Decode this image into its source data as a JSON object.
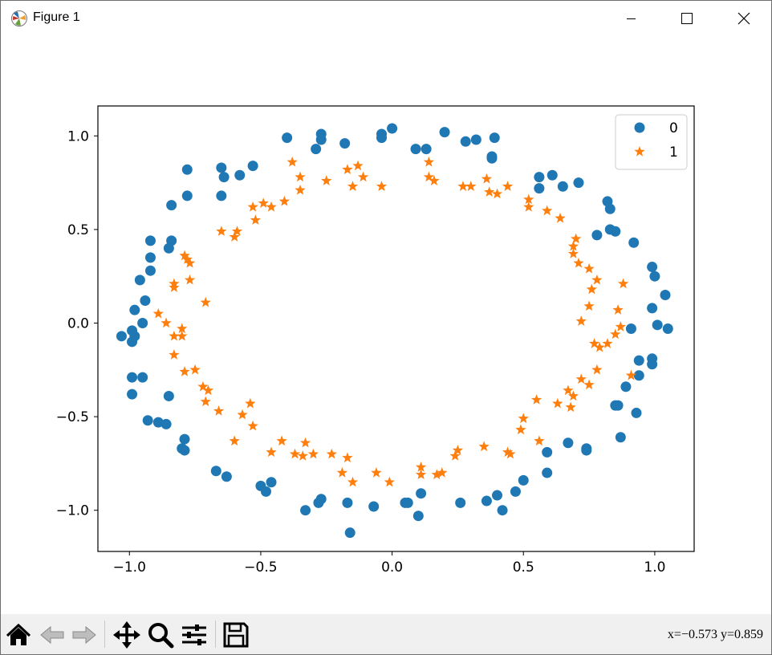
{
  "window": {
    "title": "Figure 1"
  },
  "toolbar": {
    "coords": "x=−0.573 y=0.859",
    "buttons": [
      "home-icon",
      "back-icon",
      "forward-icon",
      "pan-icon",
      "zoom-icon",
      "configure-subplots-icon",
      "save-icon"
    ]
  },
  "colors": {
    "series0": "#1f77b4",
    "series1": "#ff7f0e"
  },
  "chart_data": {
    "type": "scatter",
    "xlim": [
      -1.12,
      1.15
    ],
    "ylim": [
      -1.22,
      1.16
    ],
    "xticks": [
      -1.0,
      -0.5,
      0.0,
      0.5,
      1.0
    ],
    "xtick_labels": [
      "−1.0",
      "−0.5",
      "0.0",
      "0.5",
      "1.0"
    ],
    "yticks": [
      1.0,
      0.5,
      0.0,
      -0.5,
      -1.0
    ],
    "ytick_labels": [
      "1.0",
      "0.5",
      "0.0",
      "−0.5",
      "−1.0"
    ],
    "grid": false,
    "legend": "upper right",
    "series": [
      {
        "name": "0",
        "marker": "circle",
        "color": "#1f77b4",
        "points": [
          [
            -1.03,
            -0.07
          ],
          [
            -0.99,
            -0.04
          ],
          [
            -0.98,
            -0.07
          ],
          [
            -0.99,
            -0.1
          ],
          [
            -0.99,
            -0.29
          ],
          [
            -0.95,
            -0.29
          ],
          [
            -0.99,
            -0.38
          ],
          [
            -0.93,
            -0.52
          ],
          [
            -0.89,
            -0.53
          ],
          [
            -0.86,
            -0.54
          ],
          [
            -0.85,
            -0.39
          ],
          [
            -0.79,
            -0.62
          ],
          [
            -0.8,
            -0.67
          ],
          [
            -0.79,
            -0.68
          ],
          [
            -0.67,
            -0.79
          ],
          [
            -0.63,
            -0.82
          ],
          [
            -0.5,
            -0.87
          ],
          [
            -0.48,
            -0.9
          ],
          [
            -0.46,
            -0.85
          ],
          [
            -0.33,
            -1.0
          ],
          [
            -0.28,
            -0.96
          ],
          [
            -0.27,
            -0.94
          ],
          [
            -0.17,
            -0.96
          ],
          [
            -0.16,
            -1.12
          ],
          [
            -0.07,
            -0.98
          ],
          [
            0.05,
            -0.96
          ],
          [
            0.06,
            -0.96
          ],
          [
            0.1,
            -1.03
          ],
          [
            0.11,
            -0.91
          ],
          [
            0.26,
            -0.96
          ],
          [
            0.36,
            -0.95
          ],
          [
            0.4,
            -0.92
          ],
          [
            0.42,
            -1.0
          ],
          [
            0.47,
            -0.9
          ],
          [
            0.5,
            -0.84
          ],
          [
            0.59,
            -0.8
          ],
          [
            0.59,
            -0.69
          ],
          [
            0.67,
            -0.64
          ],
          [
            0.74,
            -0.67
          ],
          [
            0.74,
            -0.68
          ],
          [
            0.87,
            -0.61
          ],
          [
            0.85,
            -0.44
          ],
          [
            0.86,
            -0.44
          ],
          [
            0.89,
            -0.34
          ],
          [
            0.93,
            -0.48
          ],
          [
            0.94,
            -0.28
          ],
          [
            0.94,
            -0.2
          ],
          [
            0.99,
            -0.22
          ],
          [
            0.99,
            -0.19
          ],
          [
            0.91,
            -0.03
          ],
          [
            1.01,
            -0.01
          ],
          [
            1.05,
            -0.03
          ],
          [
            0.99,
            0.08
          ],
          [
            1.04,
            0.15
          ],
          [
            1.0,
            0.25
          ],
          [
            0.99,
            0.3
          ],
          [
            0.92,
            0.43
          ],
          [
            0.83,
            0.5
          ],
          [
            0.85,
            0.49
          ],
          [
            0.83,
            0.61
          ],
          [
            0.82,
            0.65
          ],
          [
            0.78,
            0.47
          ],
          [
            0.71,
            0.75
          ],
          [
            0.65,
            0.73
          ],
          [
            0.56,
            0.72
          ],
          [
            0.56,
            0.78
          ],
          [
            0.61,
            0.79
          ],
          [
            0.38,
            0.89
          ],
          [
            0.38,
            0.88
          ],
          [
            0.32,
            0.98
          ],
          [
            0.28,
            0.97
          ],
          [
            0.39,
            0.99
          ],
          [
            0.2,
            1.02
          ],
          [
            0.13,
            0.93
          ],
          [
            0.09,
            0.93
          ],
          [
            0.0,
            1.04
          ],
          [
            -0.04,
            1.01
          ],
          [
            -0.04,
            0.99
          ],
          [
            -0.18,
            0.96
          ],
          [
            -0.27,
            1.01
          ],
          [
            -0.27,
            0.98
          ],
          [
            -0.29,
            0.93
          ],
          [
            -0.4,
            0.99
          ],
          [
            -0.53,
            0.84
          ],
          [
            -0.58,
            0.79
          ],
          [
            -0.64,
            0.78
          ],
          [
            -0.65,
            0.83
          ],
          [
            -0.65,
            0.68
          ],
          [
            -0.78,
            0.82
          ],
          [
            -0.78,
            0.68
          ],
          [
            -0.84,
            0.63
          ],
          [
            -0.84,
            0.44
          ],
          [
            -0.85,
            0.4
          ],
          [
            -0.92,
            0.44
          ],
          [
            -0.92,
            0.35
          ],
          [
            -0.92,
            0.28
          ],
          [
            -0.96,
            0.23
          ],
          [
            -0.94,
            0.12
          ],
          [
            -0.98,
            0.07
          ],
          [
            -0.95,
            0.0
          ]
        ]
      },
      {
        "name": "1",
        "marker": "star",
        "color": "#ff7f0e",
        "points": [
          [
            -0.89,
            0.05
          ],
          [
            -0.86,
            0.0
          ],
          [
            -0.83,
            -0.07
          ],
          [
            -0.8,
            -0.07
          ],
          [
            -0.8,
            -0.03
          ],
          [
            -0.83,
            -0.17
          ],
          [
            -0.79,
            -0.26
          ],
          [
            -0.75,
            -0.25
          ],
          [
            -0.72,
            -0.34
          ],
          [
            -0.7,
            -0.36
          ],
          [
            -0.71,
            -0.42
          ],
          [
            -0.66,
            -0.47
          ],
          [
            -0.6,
            -0.63
          ],
          [
            -0.57,
            -0.49
          ],
          [
            -0.54,
            -0.43
          ],
          [
            -0.53,
            -0.55
          ],
          [
            -0.46,
            -0.69
          ],
          [
            -0.42,
            -0.63
          ],
          [
            -0.37,
            -0.7
          ],
          [
            -0.33,
            -0.64
          ],
          [
            -0.34,
            -0.71
          ],
          [
            -0.3,
            -0.7
          ],
          [
            -0.23,
            -0.7
          ],
          [
            -0.19,
            -0.8
          ],
          [
            -0.17,
            -0.72
          ],
          [
            -0.15,
            -0.85
          ],
          [
            -0.06,
            -0.8
          ],
          [
            -0.01,
            -0.85
          ],
          [
            0.11,
            -0.77
          ],
          [
            0.11,
            -0.81
          ],
          [
            0.17,
            -0.81
          ],
          [
            0.19,
            -0.8
          ],
          [
            0.24,
            -0.71
          ],
          [
            0.25,
            -0.68
          ],
          [
            0.35,
            -0.66
          ],
          [
            0.44,
            -0.69
          ],
          [
            0.45,
            -0.7
          ],
          [
            0.49,
            -0.57
          ],
          [
            0.5,
            -0.51
          ],
          [
            0.55,
            -0.41
          ],
          [
            0.56,
            -0.63
          ],
          [
            0.63,
            -0.43
          ],
          [
            0.67,
            -0.36
          ],
          [
            0.68,
            -0.45
          ],
          [
            0.69,
            -0.39
          ],
          [
            0.72,
            -0.3
          ],
          [
            0.75,
            -0.33
          ],
          [
            0.78,
            -0.25
          ],
          [
            0.77,
            -0.11
          ],
          [
            0.79,
            -0.13
          ],
          [
            0.82,
            -0.11
          ],
          [
            0.85,
            -0.06
          ],
          [
            0.87,
            -0.02
          ],
          [
            0.91,
            -0.28
          ],
          [
            0.75,
            0.09
          ],
          [
            0.72,
            0.01
          ],
          [
            0.76,
            0.18
          ],
          [
            0.78,
            0.23
          ],
          [
            0.88,
            0.21
          ],
          [
            0.86,
            0.07
          ],
          [
            0.75,
            0.29
          ],
          [
            0.71,
            0.32
          ],
          [
            0.69,
            0.37
          ],
          [
            0.69,
            0.41
          ],
          [
            0.7,
            0.45
          ],
          [
            0.64,
            0.56
          ],
          [
            0.59,
            0.6
          ],
          [
            0.52,
            0.62
          ],
          [
            0.52,
            0.66
          ],
          [
            0.44,
            0.73
          ],
          [
            0.4,
            0.69
          ],
          [
            0.37,
            0.7
          ],
          [
            0.36,
            0.77
          ],
          [
            0.3,
            0.73
          ],
          [
            0.27,
            0.73
          ],
          [
            0.16,
            0.76
          ],
          [
            0.14,
            0.78
          ],
          [
            0.14,
            0.86
          ],
          [
            -0.04,
            0.73
          ],
          [
            -0.11,
            0.78
          ],
          [
            -0.15,
            0.73
          ],
          [
            -0.13,
            0.84
          ],
          [
            -0.17,
            0.82
          ],
          [
            -0.25,
            0.76
          ],
          [
            -0.35,
            0.71
          ],
          [
            -0.35,
            0.78
          ],
          [
            -0.38,
            0.86
          ],
          [
            -0.41,
            0.65
          ],
          [
            -0.46,
            0.62
          ],
          [
            -0.49,
            0.64
          ],
          [
            -0.52,
            0.55
          ],
          [
            -0.53,
            0.62
          ],
          [
            -0.59,
            0.49
          ],
          [
            -0.6,
            0.46
          ],
          [
            -0.65,
            0.49
          ],
          [
            -0.77,
            0.32
          ],
          [
            -0.78,
            0.34
          ],
          [
            -0.79,
            0.36
          ],
          [
            -0.83,
            0.21
          ],
          [
            -0.83,
            0.19
          ],
          [
            -0.77,
            0.23
          ],
          [
            -0.71,
            0.11
          ]
        ]
      }
    ]
  }
}
